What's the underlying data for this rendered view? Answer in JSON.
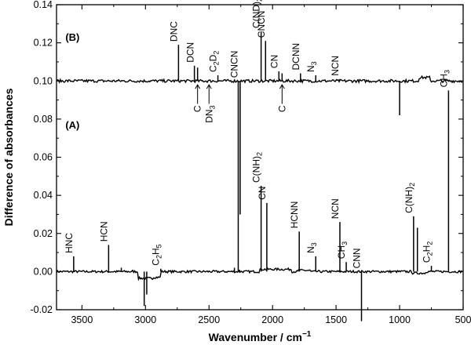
{
  "chart_data": {
    "type": "line",
    "xlabel": "Wavenumber / cm",
    "xlabel_superscript": "−1",
    "ylabel": "Difference of absorbances",
    "xlim": [
      3700,
      500
    ],
    "ylim": [
      -0.02,
      0.14
    ],
    "x_ticks": [
      3500,
      3000,
      2500,
      2000,
      1500,
      1000,
      500
    ],
    "y_ticks": [
      -0.02,
      0.0,
      0.02,
      0.04,
      0.06,
      0.08,
      0.1,
      0.12,
      0.14
    ],
    "y_tick_labels": [
      "-0.02",
      "0.00",
      "0.02",
      "0.04",
      "0.06",
      "0.08",
      "0.10",
      "0.12",
      "0.14"
    ],
    "series": [
      {
        "name": "(A)",
        "baseline": 0.0,
        "peaks": [
          {
            "x": 3565,
            "y": 0.008
          },
          {
            "x": 3290,
            "y": 0.014
          },
          {
            "x": 3190,
            "y": 0.002
          },
          {
            "x": 3100,
            "y": 0.001
          },
          {
            "x": 3010,
            "y": -0.018
          },
          {
            "x": 2990,
            "y": -0.012
          },
          {
            "x": 2880,
            "y": 0.0015
          },
          {
            "x": 2300,
            "y": 0.002
          },
          {
            "x": 2260,
            "y": 0.001
          },
          {
            "x": 2090,
            "y": 0.045
          },
          {
            "x": 2045,
            "y": 0.036
          },
          {
            "x": 1790,
            "y": 0.021
          },
          {
            "x": 1660,
            "y": 0.008
          },
          {
            "x": 1470,
            "y": 0.026
          },
          {
            "x": 1420,
            "y": 0.005
          },
          {
            "x": 1300,
            "y": -0.026
          },
          {
            "x": 890,
            "y": 0.029
          },
          {
            "x": 860,
            "y": 0.023
          },
          {
            "x": 750,
            "y": 0.003
          },
          {
            "x": 615,
            "y": 0.095
          }
        ],
        "labels": [
          {
            "text": "HNC",
            "x": 3565
          },
          {
            "text": "HCN",
            "x": 3290
          },
          {
            "text": "C",
            "sub": "2",
            "text2": "H",
            "sub2": "5",
            "x": 2880
          },
          {
            "text": "C(NH)",
            "sub": "2",
            "x": 2090
          },
          {
            "text": "CN",
            "x": 2045
          },
          {
            "text": "HCNN",
            "x": 1790
          },
          {
            "text": "N",
            "sub": "3",
            "x": 1660
          },
          {
            "text": "NCN",
            "x": 1470
          },
          {
            "text": "CH",
            "sub": "3",
            "x": 1420
          },
          {
            "text": "CNN",
            "x": 1300
          },
          {
            "text": "C(NH)",
            "sub": "2",
            "x": 890
          },
          {
            "text": "C",
            "sub": "2",
            "text2": "H",
            "sub2": "2",
            "x": 750
          },
          {
            "text": "CH",
            "sub": "3",
            "x": 615
          }
        ]
      },
      {
        "name": "(B)",
        "baseline": 0.1,
        "peaks": [
          {
            "x": 2740,
            "y": 0.119
          },
          {
            "x": 2615,
            "y": 0.108
          },
          {
            "x": 2590,
            "y": 0.107
          },
          {
            "x": 2430,
            "y": 0.103
          },
          {
            "x": 2270,
            "y": 0.0
          },
          {
            "x": 2255,
            "y": 0.03
          },
          {
            "x": 2090,
            "y": 0.126
          },
          {
            "x": 2055,
            "y": 0.121
          },
          {
            "x": 1950,
            "y": 0.105
          },
          {
            "x": 1925,
            "y": 0.104
          },
          {
            "x": 1780,
            "y": 0.104
          },
          {
            "x": 1660,
            "y": 0.103
          },
          {
            "x": 1470,
            "y": 0.101
          },
          {
            "x": 1000,
            "y": 0.082
          }
        ],
        "labels": [
          {
            "text": "DNC",
            "x": 2740
          },
          {
            "text": "DCN",
            "x": 2610
          },
          {
            "text": "C",
            "sub": "2",
            "text2": "D",
            "sub2": "2",
            "x": 2430
          },
          {
            "text": "CNCN",
            "x": 2265
          },
          {
            "text": "C(ND)",
            "sub": "2",
            "x": 2090
          },
          {
            "text": "CNCN",
            "x": 2050
          },
          {
            "text": "CN",
            "x": 1950
          },
          {
            "text": "DCNN",
            "x": 1780
          },
          {
            "text": "N",
            "sub": "3",
            "x": 1660
          },
          {
            "text": "NCN",
            "x": 1470
          }
        ],
        "arrow_labels": [
          {
            "text": "C",
            "x": 2590
          },
          {
            "text": "DN",
            "sub": "3",
            "x": 2500
          },
          {
            "text": "C",
            "x": 1925
          }
        ]
      }
    ]
  }
}
